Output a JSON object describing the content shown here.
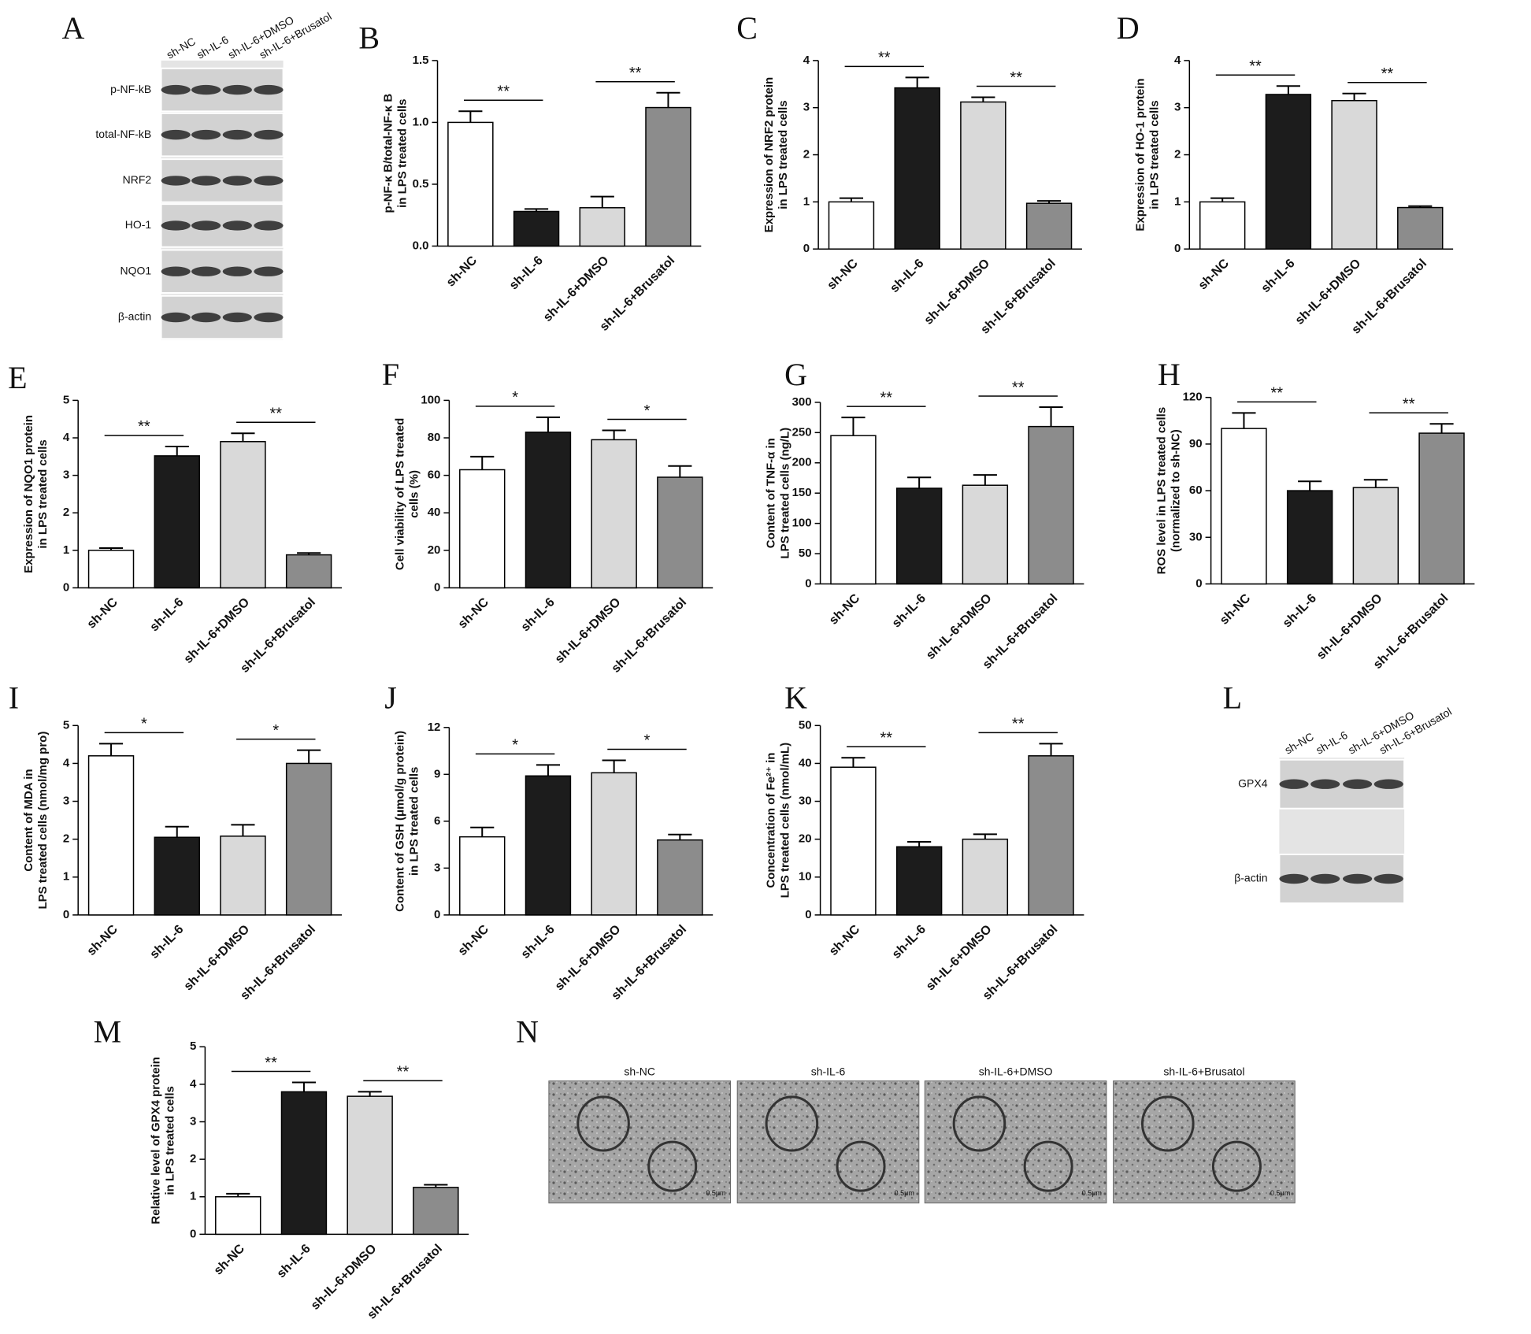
{
  "blot_A": {
    "panel": "A",
    "lanes": [
      "sh-NC",
      "sh-IL-6",
      "sh-IL-6+DMSO",
      "sh-IL-6+Brusatol"
    ],
    "rows": [
      "p-NF-kB",
      "total-NF-kB",
      "NRF2",
      "HO-1",
      "NQO1",
      "β-actin"
    ]
  },
  "chart_data": [
    {
      "type": "bar",
      "panel": "B",
      "ylabel": [
        "p-NF-κ B/total-NF-κ B",
        "in LPS treated cells"
      ],
      "categories": [
        "sh-NC",
        "sh-IL-6",
        "sh-IL-6+DMSO",
        "sh-IL-6+Brusatol"
      ],
      "values": [
        1.0,
        0.28,
        0.31,
        1.12
      ],
      "errors": [
        0.09,
        0.02,
        0.09,
        0.12
      ],
      "colors": [
        "#ffffff",
        "#1c1c1c",
        "#d9d9d9",
        "#8c8c8c"
      ],
      "ylim": [
        0,
        1.5
      ],
      "yticks": [
        {
          "value": 0,
          "label": "0.0"
        },
        0.5,
        {
          "value": 1,
          "label": "1.0"
        },
        1.5
      ],
      "annotations": [
        {
          "text": "**",
          "from": 0,
          "to": 1
        },
        {
          "text": "**",
          "from": 2,
          "to": 3
        }
      ]
    },
    {
      "type": "bar",
      "panel": "C",
      "ylabel": [
        "Expression of NRF2 protein",
        "in LPS treated cells"
      ],
      "categories": [
        "sh-NC",
        "sh-IL-6",
        "sh-IL-6+DMSO",
        "sh-IL-6+Brusatol"
      ],
      "values": [
        1.0,
        3.42,
        3.12,
        0.97
      ],
      "errors": [
        0.08,
        0.22,
        0.1,
        0.05
      ],
      "colors": [
        "#ffffff",
        "#1c1c1c",
        "#d9d9d9",
        "#8c8c8c"
      ],
      "ylim": [
        0,
        4
      ],
      "yticks": [
        0,
        1,
        2,
        3,
        4
      ],
      "annotations": [
        {
          "text": "**",
          "from": 0,
          "to": 1
        },
        {
          "text": "**",
          "from": 2,
          "to": 3
        }
      ]
    },
    {
      "type": "bar",
      "panel": "D",
      "ylabel": [
        "Expression of HO-1 protein",
        "in LPS treated cells"
      ],
      "categories": [
        "sh-NC",
        "sh-IL-6",
        "sh-IL-6+DMSO",
        "sh-IL-6+Brusatol"
      ],
      "values": [
        1.0,
        3.28,
        3.15,
        0.88
      ],
      "errors": [
        0.08,
        0.18,
        0.15,
        0.03
      ],
      "colors": [
        "#ffffff",
        "#1c1c1c",
        "#d9d9d9",
        "#8c8c8c"
      ],
      "ylim": [
        0,
        4
      ],
      "yticks": [
        0,
        1,
        2,
        3,
        4
      ],
      "annotations": [
        {
          "text": "**",
          "from": 0,
          "to": 1
        },
        {
          "text": "**",
          "from": 2,
          "to": 3
        }
      ]
    },
    {
      "type": "bar",
      "panel": "E",
      "ylabel": [
        "Expression of NQO1 protein",
        "in LPS treated cells"
      ],
      "categories": [
        "sh-NC",
        "sh-IL-6",
        "sh-IL-6+DMSO",
        "sh-IL-6+Brusatol"
      ],
      "values": [
        1.0,
        3.52,
        3.9,
        0.88
      ],
      "errors": [
        0.06,
        0.25,
        0.22,
        0.05
      ],
      "colors": [
        "#ffffff",
        "#1c1c1c",
        "#d9d9d9",
        "#8c8c8c"
      ],
      "ylim": [
        0,
        5
      ],
      "yticks": [
        0,
        1,
        2,
        3,
        4,
        5
      ],
      "annotations": [
        {
          "text": "**",
          "from": 0,
          "to": 1
        },
        {
          "text": "**",
          "from": 2,
          "to": 3
        }
      ]
    },
    {
      "type": "bar",
      "panel": "F",
      "ylabel": [
        "Cell viability of LPS treated",
        "cells (%)"
      ],
      "categories": [
        "sh-NC",
        "sh-IL-6",
        "sh-IL-6+DMSO",
        "sh-IL-6+Brusatol"
      ],
      "values": [
        63,
        83,
        79,
        59
      ],
      "errors": [
        7,
        8,
        5,
        6
      ],
      "colors": [
        "#ffffff",
        "#1c1c1c",
        "#d9d9d9",
        "#8c8c8c"
      ],
      "ylim": [
        0,
        100
      ],
      "yticks": [
        0,
        20,
        40,
        60,
        80,
        100
      ],
      "annotations": [
        {
          "text": "*",
          "from": 0,
          "to": 1
        },
        {
          "text": "*",
          "from": 2,
          "to": 3
        }
      ]
    },
    {
      "type": "bar",
      "panel": "G",
      "ylabel": [
        "Content of TNF-α in",
        "LPS treated cells (ng/L)"
      ],
      "categories": [
        "sh-NC",
        "sh-IL-6",
        "sh-IL-6+DMSO",
        "sh-IL-6+Brusatol"
      ],
      "values": [
        245,
        158,
        163,
        260
      ],
      "errors": [
        30,
        18,
        17,
        32
      ],
      "colors": [
        "#ffffff",
        "#1c1c1c",
        "#d9d9d9",
        "#8c8c8c"
      ],
      "ylim": [
        0,
        300
      ],
      "yticks": [
        0,
        50,
        100,
        150,
        200,
        250,
        300
      ],
      "annotations": [
        {
          "text": "**",
          "from": 0,
          "to": 1
        },
        {
          "text": "**",
          "from": 2,
          "to": 3
        }
      ]
    },
    {
      "type": "bar",
      "panel": "H",
      "ylabel": [
        "ROS level in LPS treated cells",
        "(normalized to sh-NC)"
      ],
      "categories": [
        "sh-NC",
        "sh-IL-6",
        "sh-IL-6+DMSO",
        "sh-IL-6+Brusatol"
      ],
      "values": [
        100,
        60,
        62,
        97
      ],
      "errors": [
        10,
        6,
        5,
        6
      ],
      "colors": [
        "#ffffff",
        "#1c1c1c",
        "#d9d9d9",
        "#8c8c8c"
      ],
      "ylim": [
        0,
        120
      ],
      "yticks": [
        0,
        30,
        60,
        90,
        120
      ],
      "annotations": [
        {
          "text": "**",
          "from": 0,
          "to": 1
        },
        {
          "text": "**",
          "from": 2,
          "to": 3
        }
      ]
    },
    {
      "type": "bar",
      "panel": "I",
      "ylabel": [
        "Content of MDA in",
        "LPS treated cells (nmol/mg pro)"
      ],
      "categories": [
        "sh-NC",
        "sh-IL-6",
        "sh-IL-6+DMSO",
        "sh-IL-6+Brusatol"
      ],
      "values": [
        4.2,
        2.05,
        2.08,
        4.0
      ],
      "errors": [
        0.32,
        0.28,
        0.3,
        0.35
      ],
      "colors": [
        "#ffffff",
        "#1c1c1c",
        "#d9d9d9",
        "#8c8c8c"
      ],
      "ylim": [
        0,
        5
      ],
      "yticks": [
        0,
        1,
        2,
        3,
        4,
        5
      ],
      "annotations": [
        {
          "text": "*",
          "from": 0,
          "to": 1
        },
        {
          "text": "*",
          "from": 2,
          "to": 3
        }
      ]
    },
    {
      "type": "bar",
      "panel": "J",
      "ylabel": [
        "Content of GSH (μmol/g protein)",
        "in LPS treated cells"
      ],
      "categories": [
        "sh-NC",
        "sh-IL-6",
        "sh-IL-6+DMSO",
        "sh-IL-6+Brusatol"
      ],
      "values": [
        5.0,
        8.9,
        9.1,
        4.8
      ],
      "errors": [
        0.6,
        0.7,
        0.8,
        0.35
      ],
      "colors": [
        "#ffffff",
        "#1c1c1c",
        "#d9d9d9",
        "#8c8c8c"
      ],
      "ylim": [
        0,
        12
      ],
      "yticks": [
        0,
        3,
        6,
        9,
        12
      ],
      "annotations": [
        {
          "text": "*",
          "from": 0,
          "to": 1
        },
        {
          "text": "*",
          "from": 2,
          "to": 3
        }
      ]
    },
    {
      "type": "bar",
      "panel": "K",
      "ylabel": [
        "Concentration of Fe²⁺ in",
        "LPS treated cells (nmol/mL)"
      ],
      "categories": [
        "sh-NC",
        "sh-IL-6",
        "sh-IL-6+DMSO",
        "sh-IL-6+Brusatol"
      ],
      "values": [
        39,
        18,
        20,
        42
      ],
      "errors": [
        2.5,
        1.3,
        1.3,
        3.2
      ],
      "colors": [
        "#ffffff",
        "#1c1c1c",
        "#d9d9d9",
        "#8c8c8c"
      ],
      "ylim": [
        0,
        50
      ],
      "yticks": [
        0,
        10,
        20,
        30,
        40,
        50
      ],
      "annotations": [
        {
          "text": "**",
          "from": 0,
          "to": 1
        },
        {
          "text": "**",
          "from": 2,
          "to": 3
        }
      ]
    },
    {
      "type": "bar",
      "panel": "M",
      "ylabel": [
        "Relative level of GPX4 protein",
        "in LPS treated cells"
      ],
      "categories": [
        "sh-NC",
        "sh-IL-6",
        "sh-IL-6+DMSO",
        "sh-IL-6+Brusatol"
      ],
      "values": [
        1.0,
        3.8,
        3.68,
        1.25
      ],
      "errors": [
        0.08,
        0.25,
        0.12,
        0.07
      ],
      "colors": [
        "#ffffff",
        "#1c1c1c",
        "#d9d9d9",
        "#8c8c8c"
      ],
      "ylim": [
        0,
        5
      ],
      "yticks": [
        0,
        1,
        2,
        3,
        4,
        5
      ],
      "annotations": [
        {
          "text": "**",
          "from": 0,
          "to": 1
        },
        {
          "text": "**",
          "from": 2,
          "to": 3
        }
      ]
    }
  ],
  "blot_L": {
    "panel": "L",
    "lanes": [
      "sh-NC",
      "sh-IL-6",
      "sh-IL-6+DMSO",
      "sh-IL-6+Brusatol"
    ],
    "rows": [
      "GPX4",
      "β-actin"
    ]
  },
  "tem_N": {
    "panel": "N",
    "titles": [
      "sh-NC",
      "sh-IL-6",
      "sh-IL-6+DMSO",
      "sh-IL-6+Brusatol"
    ],
    "scale_bars": [
      "0.5μm",
      "0.5μm",
      "0.5μm",
      "0.5μm"
    ]
  }
}
